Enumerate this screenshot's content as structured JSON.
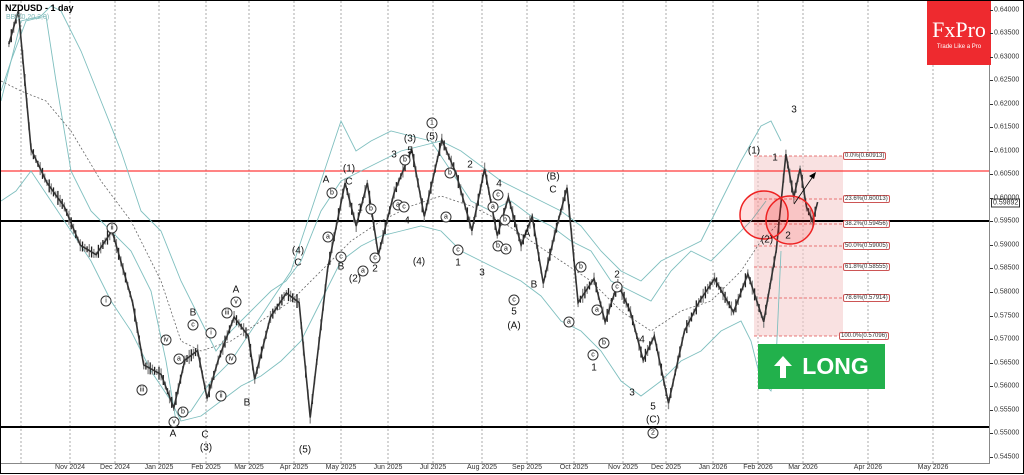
{
  "chart_data": {
    "type": "candlestick",
    "title": "NZDUSD - 1 day",
    "indicator": "BB(20,20,2,0)",
    "xlabel": "",
    "ylabel": "",
    "ylim": [
      0.5445,
      0.641
    ],
    "y_ticks": [
      "0.64000",
      "0.63500",
      "0.63000",
      "0.62500",
      "0.62000",
      "0.61500",
      "0.61000",
      "0.60500",
      "0.60000",
      "0.59500",
      "0.59000",
      "0.58500",
      "0.58000",
      "0.57500",
      "0.57000",
      "0.56500",
      "0.56000",
      "0.55500",
      "0.55000",
      "0.54500"
    ],
    "x_ticks": [
      "Nov 2024",
      "Dec 2024",
      "Jan 2025",
      "Feb 2025",
      "Mar 2025",
      "Apr 2025",
      "May 2025",
      "Jun 2025",
      "Jul 2025",
      "Aug 2025",
      "Sep 2025",
      "Oct 2025",
      "Nov 2025",
      "Dec 2025",
      "Jan 2026",
      "Feb 2026",
      "Mar 2026",
      "Apr 2026",
      "May 2026"
    ],
    "current_price": "0.59892",
    "horizontal_lines": [
      {
        "name": "resistance",
        "value": 0.606,
        "color": "#ff3b3b"
      },
      {
        "name": "support",
        "value": 0.595,
        "color": "#000000"
      },
      {
        "name": "low-support",
        "value": 0.5518,
        "color": "#000000"
      }
    ],
    "fibonacci_levels": [
      {
        "label": "0.0%(0.60913)",
        "value": 0.60913
      },
      {
        "label": "23.6%(0.60013)",
        "value": 0.60013
      },
      {
        "label": "38.2%(0.59456)",
        "value": 0.59456
      },
      {
        "label": "50.0%(0.59005)",
        "value": 0.59005
      },
      {
        "label": "61.8%(0.58555)",
        "value": 0.58555
      },
      {
        "label": "78.6%(0.57914)",
        "value": 0.57914
      },
      {
        "label": "100.0%(0.57096)",
        "value": 0.57096
      }
    ],
    "price_path": [
      [
        "2024-10-01",
        0.632
      ],
      [
        "2024-10-07",
        0.639
      ],
      [
        "2024-10-15",
        0.61
      ],
      [
        "2024-10-25",
        0.603
      ],
      [
        "2024-11-05",
        0.598
      ],
      [
        "2024-11-15",
        0.59
      ],
      [
        "2024-11-25",
        0.588
      ],
      [
        "2024-12-05",
        0.593
      ],
      [
        "2024-12-12",
        0.585
      ],
      [
        "2024-12-18",
        0.578
      ],
      [
        "2024-12-25",
        0.565
      ],
      [
        "2025-01-05",
        0.563
      ],
      [
        "2025-01-13",
        0.556
      ],
      [
        "2025-01-20",
        0.566
      ],
      [
        "2025-01-28",
        0.568
      ],
      [
        "2025-02-03",
        0.558
      ],
      [
        "2025-02-10",
        0.566
      ],
      [
        "2025-02-20",
        0.575
      ],
      [
        "2025-03-01",
        0.571
      ],
      [
        "2025-03-05",
        0.562
      ],
      [
        "2025-03-15",
        0.575
      ],
      [
        "2025-03-25",
        0.58
      ],
      [
        "2025-04-02",
        0.578
      ],
      [
        "2025-04-09",
        0.554
      ],
      [
        "2025-04-20",
        0.585
      ],
      [
        "2025-05-01",
        0.603
      ],
      [
        "2025-05-08",
        0.594
      ],
      [
        "2025-05-15",
        0.603
      ],
      [
        "2025-05-22",
        0.588
      ],
      [
        "2025-06-01",
        0.601
      ],
      [
        "2025-06-12",
        0.61
      ],
      [
        "2025-06-20",
        0.596
      ],
      [
        "2025-07-01",
        0.612
      ],
      [
        "2025-07-10",
        0.605
      ],
      [
        "2025-07-20",
        0.593
      ],
      [
        "2025-07-28",
        0.606
      ],
      [
        "2025-08-05",
        0.592
      ],
      [
        "2025-08-12",
        0.6
      ],
      [
        "2025-08-20",
        0.59
      ],
      [
        "2025-08-27",
        0.596
      ],
      [
        "2025-09-03",
        0.582
      ],
      [
        "2025-09-10",
        0.592
      ],
      [
        "2025-09-18",
        0.602
      ],
      [
        "2025-09-25",
        0.578
      ],
      [
        "2025-10-05",
        0.583
      ],
      [
        "2025-10-12",
        0.574
      ],
      [
        "2025-10-20",
        0.582
      ],
      [
        "2025-10-28",
        0.576
      ],
      [
        "2025-11-05",
        0.566
      ],
      [
        "2025-11-12",
        0.571
      ],
      [
        "2025-11-21",
        0.557
      ],
      [
        "2025-12-01",
        0.572
      ],
      [
        "2025-12-10",
        0.578
      ],
      [
        "2025-12-20",
        0.583
      ],
      [
        "2026-01-01",
        0.576
      ],
      [
        "2026-01-10",
        0.584
      ],
      [
        "2026-01-20",
        0.574
      ],
      [
        "2026-01-28",
        0.589
      ],
      [
        "2026-02-03",
        0.609
      ],
      [
        "2026-02-08",
        0.6
      ],
      [
        "2026-02-12",
        0.606
      ],
      [
        "2026-02-16",
        0.598
      ],
      [
        "2026-02-20",
        0.595
      ],
      [
        "2026-02-23",
        0.599
      ]
    ],
    "annotations": {
      "projection_arrow": {
        "from": [
          0.5995,
          "2026-02-24"
        ],
        "to": [
          0.605,
          "2026-03-05"
        ]
      },
      "circles": [
        "(2) at 2026-02-08",
        "2 at 2026-02-20"
      ],
      "signal": "LONG"
    },
    "wave_labels": [
      "(1)",
      "(2)",
      "(3)",
      "(4)",
      "(5)",
      "A",
      "B",
      "C",
      "(A)",
      "(B)",
      "(C)",
      "1",
      "2",
      "3",
      "4",
      "5",
      "i",
      "ii",
      "iii",
      "iv",
      "v",
      "a",
      "b",
      "c"
    ],
    "grid": true,
    "legend": "none"
  },
  "header": {
    "symbol_title": "NZDUSD - 1 day",
    "indicator_label": "BB(20,20,2,0)"
  },
  "logo": {
    "brand": "FxPro",
    "tagline": "Trade Like a Pro",
    "color": "#ee2a2f"
  },
  "signal_badge": {
    "label": "LONG",
    "icon": "arrow-up-icon",
    "color": "#22b14c"
  },
  "y_axis": {
    "ticks": [
      "0.64000",
      "0.63500",
      "0.63000",
      "0.62500",
      "0.62000",
      "0.61500",
      "0.61000",
      "0.60500",
      "0.60000",
      "0.59500",
      "0.59000",
      "0.58500",
      "0.58000",
      "0.57500",
      "0.57000",
      "0.56500",
      "0.56000",
      "0.55500",
      "0.55000",
      "0.54500"
    ],
    "current_price": "0.59892"
  },
  "x_axis": {
    "ticks": [
      "Nov 2024",
      "Dec 2024",
      "Jan 2025",
      "Feb 2025",
      "Mar 2025",
      "Apr 2025",
      "May 2025",
      "Jun 2025",
      "Jul 2025",
      "Aug 2025",
      "Sep 2025",
      "Oct 2025",
      "Nov 2025",
      "Dec 2025",
      "Jan 2026",
      "Feb 2026",
      "Mar 2026",
      "Apr 2026",
      "May 2026"
    ]
  },
  "fib": {
    "levels": [
      "0.0%(0.60913)",
      "23.6%(0.60013)",
      "38.2%(0.59456)",
      "50.0%(0.59005)",
      "61.8%(0.58555)",
      "78.6%(0.57914)",
      "100.0%(0.57096)"
    ]
  },
  "wave_text": {
    "w1": "(1)",
    "w2": "(2)",
    "w3": "(3)",
    "w4": "(4)",
    "w5": "(5)",
    "A": "A",
    "B": "B",
    "C": "C",
    "wA": "(A)",
    "wB": "(B)",
    "wC": "(C)",
    "n1": "1",
    "n2": "2",
    "n3": "3",
    "n4": "4",
    "n5": "5",
    "ci": "i",
    "cii": "ii",
    "ciii": "iii",
    "civ": "iv",
    "cv": "v",
    "ca": "a",
    "cb": "b",
    "cc": "c",
    "c1": "1",
    "c2": "2"
  }
}
